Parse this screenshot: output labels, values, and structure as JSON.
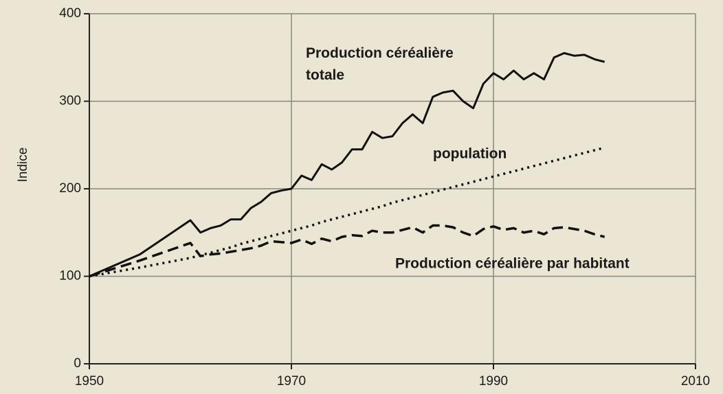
{
  "chart_data": {
    "type": "line",
    "y_label": "Indice",
    "x": [
      1950,
      1955,
      1960,
      1961,
      1962,
      1963,
      1964,
      1965,
      1966,
      1967,
      1968,
      1969,
      1970,
      1971,
      1972,
      1973,
      1974,
      1975,
      1976,
      1977,
      1978,
      1979,
      1980,
      1981,
      1982,
      1983,
      1984,
      1985,
      1986,
      1987,
      1988,
      1989,
      1990,
      1991,
      1992,
      1993,
      1994,
      1995,
      1996,
      1997,
      1998,
      1999,
      2000,
      2001
    ],
    "series": [
      {
        "name": "Production céréalière totale",
        "color": "#111111",
        "style": "solid",
        "values": [
          100,
          125,
          164,
          150,
          155,
          158,
          165,
          165,
          178,
          185,
          195,
          198,
          200,
          215,
          210,
          228,
          222,
          230,
          245,
          245,
          265,
          258,
          260,
          275,
          285,
          275,
          305,
          310,
          312,
          300,
          292,
          320,
          332,
          325,
          335,
          325,
          332,
          325,
          350,
          355,
          352,
          353,
          348,
          345
        ]
      },
      {
        "name": "population",
        "color": "#111111",
        "style": "dotted",
        "values": [
          100,
          110,
          121,
          124,
          127,
          130,
          133,
          137,
          140,
          143,
          146,
          149,
          152,
          155,
          158,
          162,
          165,
          168,
          171,
          174,
          177,
          180,
          184,
          187,
          190,
          193,
          196,
          199,
          202,
          205,
          208,
          211,
          214,
          217,
          220,
          223,
          226,
          229,
          232,
          235,
          238,
          241,
          244,
          247
        ]
      },
      {
        "name": "Production céréalière par habitant",
        "color": "#111111",
        "style": "dashed",
        "values": [
          100,
          118,
          138,
          123,
          125,
          126,
          128,
          130,
          132,
          135,
          140,
          139,
          138,
          142,
          137,
          143,
          140,
          145,
          147,
          146,
          152,
          150,
          150,
          153,
          156,
          150,
          158,
          158,
          156,
          150,
          146,
          154,
          157,
          153,
          155,
          150,
          152,
          148,
          155,
          156,
          154,
          152,
          148,
          145
        ]
      }
    ],
    "xlim": [
      1950,
      2010
    ],
    "xticks": [
      1950,
      1970,
      1990,
      2010
    ],
    "ylim": [
      0,
      400
    ],
    "yticks": [
      0,
      100,
      200,
      300,
      400
    ],
    "grid": true
  }
}
